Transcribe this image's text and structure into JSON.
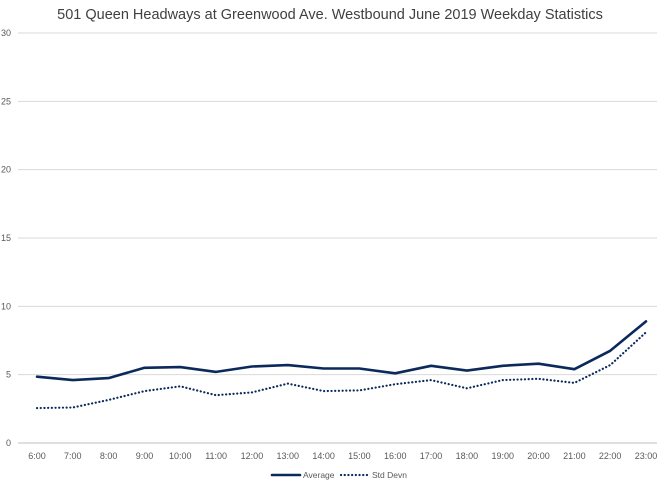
{
  "chart_data": {
    "type": "line",
    "title": "501 Queen Headways at Greenwood Ave. Westbound June 2019 Weekday Statistics",
    "categories": [
      "6:00",
      "7:00",
      "8:00",
      "9:00",
      "10:00",
      "11:00",
      "12:00",
      "13:00",
      "14:00",
      "15:00",
      "16:00",
      "17:00",
      "18:00",
      "19:00",
      "20:00",
      "21:00",
      "22:00",
      "23:00"
    ],
    "ylim": [
      0,
      30
    ],
    "yticks": [
      0,
      5,
      10,
      15,
      20,
      25,
      30
    ],
    "grid": true,
    "legend_position": "bottom",
    "series": [
      {
        "name": "Average",
        "style": "solid",
        "color": "#0b2a5b",
        "values": [
          4.85,
          4.6,
          4.75,
          5.5,
          5.55,
          5.2,
          5.6,
          5.7,
          5.45,
          5.45,
          5.1,
          5.65,
          5.3,
          5.65,
          5.8,
          5.4,
          6.75,
          8.9
        ]
      },
      {
        "name": "Std Devn",
        "style": "dotted",
        "color": "#0b2a5b",
        "values": [
          2.55,
          2.6,
          3.15,
          3.8,
          4.15,
          3.5,
          3.7,
          4.35,
          3.8,
          3.85,
          4.3,
          4.6,
          4.0,
          4.6,
          4.7,
          4.4,
          5.7,
          8.1
        ]
      }
    ]
  }
}
